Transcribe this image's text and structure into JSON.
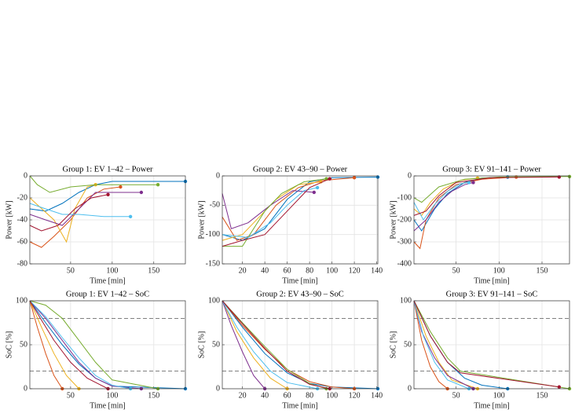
{
  "chart_data": [
    {
      "type": "line",
      "title": "Group 1: EV 1–42 – Power",
      "xlabel": "Time [min]",
      "ylabel": "Power [kW]",
      "xlim": [
        1,
        188
      ],
      "xticks": [
        50,
        100,
        150
      ],
      "ylim": [
        -80,
        0
      ],
      "yticks": [
        -80,
        -60,
        -40,
        -20,
        0
      ],
      "grid": true,
      "series": [
        {
          "color": "#0072BD",
          "x": [
            1,
            20,
            40,
            60,
            80,
            100,
            188
          ],
          "values": [
            -30,
            -32,
            -25,
            -15,
            -8,
            -5,
            -5
          ]
        },
        {
          "color": "#D95319",
          "x": [
            1,
            15,
            30,
            50,
            70,
            90,
            110
          ],
          "values": [
            -60,
            -65,
            -55,
            -40,
            -20,
            -12,
            -10
          ]
        },
        {
          "color": "#EDB120",
          "x": [
            1,
            30,
            45,
            55,
            70,
            80
          ],
          "values": [
            -20,
            -40,
            -60,
            -30,
            -10,
            -8
          ]
        },
        {
          "color": "#7E2F8E",
          "x": [
            1,
            20,
            40,
            60,
            80,
            100,
            135
          ],
          "values": [
            -35,
            -40,
            -45,
            -30,
            -15,
            -15,
            -15
          ]
        },
        {
          "color": "#77AC30",
          "x": [
            1,
            10,
            25,
            50,
            80,
            120,
            155
          ],
          "values": [
            0,
            -8,
            -15,
            -10,
            -8,
            -8,
            -8
          ]
        },
        {
          "color": "#4DBEEE",
          "x": [
            1,
            20,
            40,
            60,
            90,
            122
          ],
          "values": [
            -25,
            -30,
            -35,
            -35,
            -37,
            -37
          ]
        },
        {
          "color": "#A2142F",
          "x": [
            1,
            15,
            35,
            55,
            75,
            95
          ],
          "values": [
            -45,
            -50,
            -45,
            -30,
            -20,
            -17
          ]
        }
      ]
    },
    {
      "type": "line",
      "title": "Group 2: EV 43–90 – Power",
      "xlabel": "Time [min]",
      "ylabel": "Power [kW]",
      "xlim": [
        2,
        141
      ],
      "xticks": [
        20,
        40,
        60,
        80,
        100,
        120,
        140
      ],
      "ylim": [
        -150,
        0
      ],
      "yticks": [
        -150,
        -100,
        -50,
        0
      ],
      "grid": true,
      "series": [
        {
          "color": "#0072BD",
          "x": [
            2,
            20,
            40,
            60,
            80,
            100,
            141
          ],
          "values": [
            -100,
            -110,
            -90,
            -40,
            -10,
            -3,
            -2
          ]
        },
        {
          "color": "#D95319",
          "x": [
            2,
            15,
            30,
            50,
            70,
            90,
            120
          ],
          "values": [
            -70,
            -110,
            -100,
            -50,
            -20,
            -8,
            -3
          ]
        },
        {
          "color": "#EDB120",
          "x": [
            2,
            20,
            35,
            50,
            70,
            90
          ],
          "values": [
            -110,
            -100,
            -70,
            -40,
            -15,
            -10
          ]
        },
        {
          "color": "#7E2F8E",
          "x": [
            2,
            10,
            25,
            45,
            65,
            84
          ],
          "values": [
            -30,
            -90,
            -80,
            -50,
            -25,
            -28
          ]
        },
        {
          "color": "#77AC30",
          "x": [
            2,
            20,
            40,
            55,
            75,
            95
          ],
          "values": [
            -120,
            -120,
            -60,
            -30,
            -10,
            -5
          ]
        },
        {
          "color": "#4DBEEE",
          "x": [
            2,
            25,
            45,
            60,
            75,
            87
          ],
          "values": [
            -100,
            -105,
            -80,
            -50,
            -25,
            -20
          ]
        },
        {
          "color": "#A2142F",
          "x": [
            2,
            20,
            40,
            60,
            80,
            98
          ],
          "values": [
            -120,
            -110,
            -100,
            -60,
            -20,
            -5
          ]
        }
      ]
    },
    {
      "type": "line",
      "title": "Group 3: EV 91–141 – Power",
      "xlabel": "Time [min]",
      "ylabel": "Power [kW]",
      "xlim": [
        1,
        182
      ],
      "xticks": [
        50,
        100,
        150
      ],
      "ylim": [
        -400,
        0
      ],
      "yticks": [
        -400,
        -300,
        -200,
        -100,
        0
      ],
      "grid": true,
      "series": [
        {
          "color": "#0072BD",
          "x": [
            1,
            10,
            25,
            40,
            60,
            80,
            110
          ],
          "values": [
            -200,
            -250,
            -150,
            -80,
            -30,
            -10,
            -5
          ]
        },
        {
          "color": "#D95319",
          "x": [
            1,
            8,
            15,
            30,
            50,
            80,
            120
          ],
          "values": [
            -300,
            -330,
            -200,
            -100,
            -40,
            -15,
            -5
          ]
        },
        {
          "color": "#EDB120",
          "x": [
            1,
            10,
            20,
            35,
            55,
            75
          ],
          "values": [
            -150,
            -180,
            -120,
            -60,
            -20,
            -10
          ]
        },
        {
          "color": "#7E2F8E",
          "x": [
            1,
            15,
            30,
            45,
            60,
            70
          ],
          "values": [
            -250,
            -200,
            -120,
            -70,
            -40,
            -30
          ]
        },
        {
          "color": "#77AC30",
          "x": [
            1,
            10,
            30,
            60,
            100,
            182
          ],
          "values": [
            -100,
            -120,
            -50,
            -15,
            -5,
            -3
          ]
        },
        {
          "color": "#4DBEEE",
          "x": [
            1,
            12,
            25,
            40,
            55,
            65
          ],
          "values": [
            -120,
            -200,
            -130,
            -70,
            -35,
            -30
          ]
        },
        {
          "color": "#A2142F",
          "x": [
            1,
            15,
            30,
            50,
            90,
            170
          ],
          "values": [
            -180,
            -160,
            -90,
            -30,
            -8,
            -5
          ]
        }
      ]
    },
    {
      "type": "line",
      "title": "Group 1: EV 1–42 – SoC",
      "xlabel": "Time [min]",
      "ylabel": "SoC [%]",
      "xlim": [
        1,
        188
      ],
      "xticks": [
        50,
        100,
        150
      ],
      "ylim": [
        0,
        100
      ],
      "yticks": [
        0,
        50,
        100
      ],
      "grid": true,
      "ref_lines": [
        80,
        20
      ],
      "series": [
        {
          "color": "#0072BD",
          "x": [
            1,
            20,
            40,
            60,
            80,
            100,
            188
          ],
          "values": [
            100,
            75,
            50,
            28,
            12,
            3,
            0
          ]
        },
        {
          "color": "#D95319",
          "x": [
            1,
            10,
            20,
            30,
            40
          ],
          "values": [
            100,
            70,
            40,
            15,
            0
          ]
        },
        {
          "color": "#EDB120",
          "x": [
            1,
            15,
            30,
            45,
            60
          ],
          "values": [
            100,
            70,
            40,
            15,
            0
          ]
        },
        {
          "color": "#7E2F8E",
          "x": [
            1,
            20,
            40,
            60,
            80,
            100,
            135
          ],
          "values": [
            100,
            80,
            55,
            30,
            12,
            3,
            0
          ]
        },
        {
          "color": "#77AC30",
          "x": [
            1,
            20,
            40,
            60,
            80,
            100,
            155
          ],
          "values": [
            100,
            95,
            80,
            55,
            30,
            10,
            0
          ]
        },
        {
          "color": "#4DBEEE",
          "x": [
            1,
            20,
            40,
            60,
            80,
            100,
            122
          ],
          "values": [
            100,
            82,
            58,
            35,
            15,
            4,
            0
          ]
        },
        {
          "color": "#A2142F",
          "x": [
            1,
            15,
            30,
            50,
            70,
            95
          ],
          "values": [
            100,
            78,
            55,
            30,
            12,
            0
          ]
        }
      ]
    },
    {
      "type": "line",
      "title": "Group 2: EV 43–90 – SoC",
      "xlabel": "Time [min]",
      "ylabel": "SoC [%]",
      "xlim": [
        2,
        141
      ],
      "xticks": [
        20,
        40,
        60,
        80,
        100,
        120,
        140
      ],
      "ylim": [
        0,
        100
      ],
      "yticks": [
        0,
        50,
        100
      ],
      "grid": true,
      "ref_lines": [
        80,
        20
      ],
      "series": [
        {
          "color": "#0072BD",
          "x": [
            2,
            20,
            40,
            60,
            80,
            100,
            141
          ],
          "values": [
            100,
            70,
            40,
            18,
            6,
            2,
            0
          ]
        },
        {
          "color": "#D95319",
          "x": [
            2,
            20,
            40,
            60,
            80,
            100,
            120
          ],
          "values": [
            100,
            72,
            45,
            22,
            8,
            2,
            0
          ]
        },
        {
          "color": "#EDB120",
          "x": [
            2,
            15,
            30,
            45,
            60
          ],
          "values": [
            100,
            65,
            35,
            12,
            0
          ]
        },
        {
          "color": "#7E2F8E",
          "x": [
            2,
            10,
            20,
            30,
            40
          ],
          "values": [
            100,
            72,
            42,
            15,
            0
          ]
        },
        {
          "color": "#77AC30",
          "x": [
            2,
            20,
            40,
            60,
            80,
            95
          ],
          "values": [
            100,
            75,
            48,
            22,
            6,
            0
          ]
        },
        {
          "color": "#4DBEEE",
          "x": [
            2,
            15,
            30,
            45,
            60,
            87
          ],
          "values": [
            100,
            70,
            42,
            20,
            7,
            0
          ]
        },
        {
          "color": "#A2142F",
          "x": [
            2,
            20,
            40,
            60,
            80,
            98
          ],
          "values": [
            100,
            74,
            46,
            20,
            5,
            0
          ]
        }
      ]
    },
    {
      "type": "line",
      "title": "Group 3: EV 91–141 – SoC",
      "xlabel": "Time [min]",
      "ylabel": "SoC [%]",
      "xlim": [
        1,
        182
      ],
      "xticks": [
        50,
        100,
        150
      ],
      "ylim": [
        0,
        100
      ],
      "yticks": [
        0,
        50,
        100
      ],
      "grid": true,
      "ref_lines": [
        80,
        20
      ],
      "series": [
        {
          "color": "#0072BD",
          "x": [
            1,
            20,
            40,
            60,
            80,
            110
          ],
          "values": [
            100,
            60,
            30,
            12,
            4,
            0
          ]
        },
        {
          "color": "#D95319",
          "x": [
            1,
            10,
            20,
            30,
            40
          ],
          "values": [
            100,
            55,
            25,
            8,
            0
          ]
        },
        {
          "color": "#EDB120",
          "x": [
            1,
            15,
            30,
            45,
            75
          ],
          "values": [
            100,
            60,
            30,
            10,
            0
          ]
        },
        {
          "color": "#7E2F8E",
          "x": [
            1,
            10,
            25,
            40,
            70
          ],
          "values": [
            100,
            65,
            35,
            15,
            0
          ]
        },
        {
          "color": "#77AC30",
          "x": [
            1,
            20,
            40,
            55,
            182
          ],
          "values": [
            100,
            65,
            35,
            20,
            0
          ]
        },
        {
          "color": "#4DBEEE",
          "x": [
            1,
            12,
            25,
            40,
            65
          ],
          "values": [
            100,
            60,
            30,
            10,
            0
          ]
        },
        {
          "color": "#A2142F",
          "x": [
            1,
            20,
            40,
            55,
            170
          ],
          "values": [
            100,
            60,
            30,
            18,
            2
          ]
        }
      ]
    }
  ]
}
